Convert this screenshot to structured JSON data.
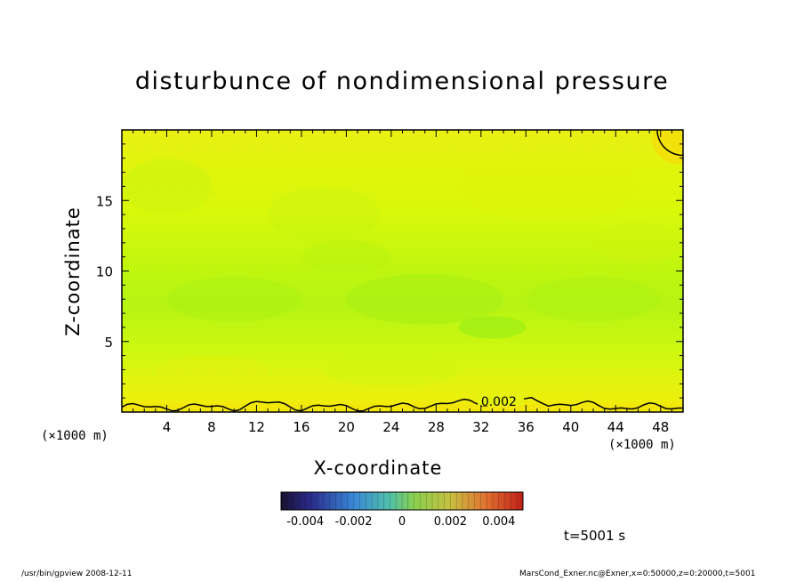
{
  "chart_data": {
    "type": "heatmap",
    "title": "disturbunce of nondimensional pressure",
    "xlabel": "X-coordinate",
    "ylabel": "Z-coordinate",
    "x_unit": "(×1000 m)",
    "xlim": [
      0,
      50
    ],
    "ylim": [
      0,
      20
    ],
    "x_ticks": [
      4,
      8,
      12,
      16,
      20,
      24,
      28,
      32,
      36,
      40,
      44,
      48
    ],
    "y_ticks": [
      5,
      10,
      15
    ],
    "contour_levels": [
      0.002
    ],
    "contour_label": "0.002",
    "colorbar": {
      "range": [
        -0.005,
        0.005
      ],
      "tick_labels": [
        "-0.004",
        "-0.002",
        "0",
        "0.002",
        "0.004"
      ],
      "tick_values": [
        -0.004,
        -0.002,
        0,
        0.002,
        0.004
      ]
    },
    "field_summary": "values ~0.0005–0.0015 (yellow-green) throughout, minimum ~0.0005 near z=6–9 km, >0.002 (yellow) near z=0 and upper-right corner"
  },
  "time_label": "t=5001 s",
  "footer": {
    "left": "/usr/bin/gpview   2008-12-11",
    "right": "MarsCond_Exner.nc@Exner,x=0:50000,z=0:20000,t=5001"
  }
}
